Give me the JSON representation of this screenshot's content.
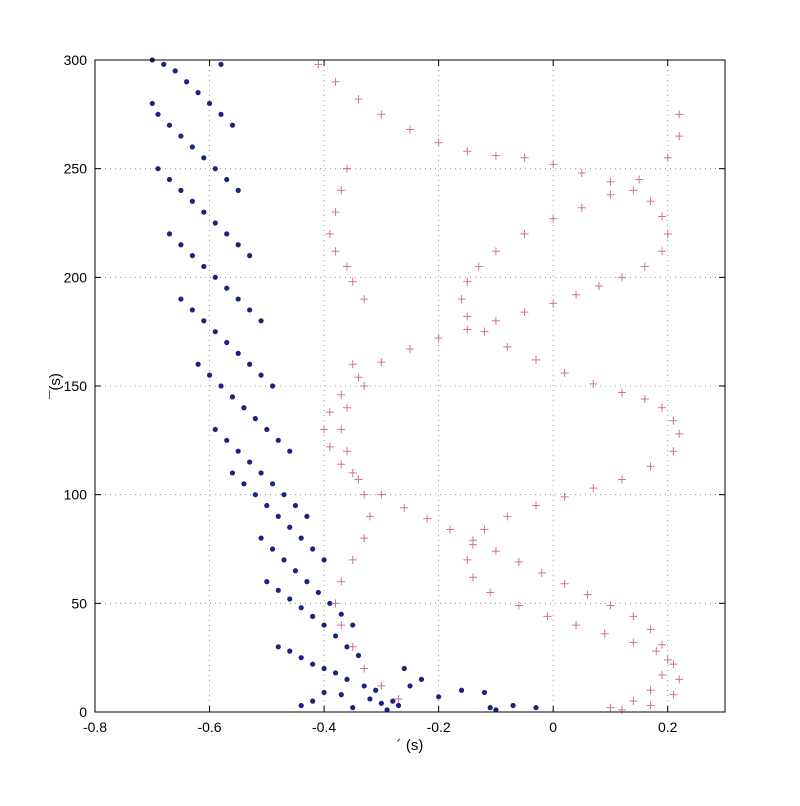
{
  "chart_data": {
    "type": "scatter",
    "title": "",
    "xlabel": "´ (s)",
    "ylabel": "¯(s)",
    "xlim": [
      -0.8,
      0.3
    ],
    "ylim": [
      0,
      300
    ],
    "xticks": [
      "-0.8",
      "-0.6",
      "-0.4",
      "-0.2",
      "0",
      "0.2"
    ],
    "yticks": [
      "0",
      "50",
      "100",
      "150",
      "200",
      "250",
      "300"
    ],
    "grid": true,
    "colors": {
      "dots": "#1a237e",
      "plus": "#d4709a"
    },
    "series": [
      {
        "marker": "dot",
        "color": "#1a237e",
        "points": [
          [
            -0.03,
            2
          ],
          [
            -0.07,
            3
          ],
          [
            -0.1,
            1
          ],
          [
            -0.11,
            2
          ],
          [
            -0.16,
            10
          ],
          [
            -0.12,
            9
          ],
          [
            -0.2,
            7
          ],
          [
            -0.23,
            15
          ],
          [
            -0.25,
            12
          ],
          [
            -0.27,
            3
          ],
          [
            -0.29,
            1
          ],
          [
            -0.26,
            20
          ],
          [
            -0.28,
            5
          ],
          [
            -0.3,
            4
          ],
          [
            -0.32,
            6
          ],
          [
            -0.35,
            2
          ],
          [
            -0.37,
            8
          ],
          [
            -0.4,
            9
          ],
          [
            -0.42,
            5
          ],
          [
            -0.44,
            3
          ],
          [
            -0.31,
            10
          ],
          [
            -0.33,
            12
          ],
          [
            -0.36,
            15
          ],
          [
            -0.38,
            18
          ],
          [
            -0.4,
            20
          ],
          [
            -0.42,
            22
          ],
          [
            -0.44,
            25
          ],
          [
            -0.46,
            28
          ],
          [
            -0.48,
            30
          ],
          [
            -0.34,
            26
          ],
          [
            -0.36,
            30
          ],
          [
            -0.38,
            35
          ],
          [
            -0.4,
            40
          ],
          [
            -0.42,
            44
          ],
          [
            -0.44,
            48
          ],
          [
            -0.46,
            52
          ],
          [
            -0.48,
            56
          ],
          [
            -0.5,
            60
          ],
          [
            -0.35,
            40
          ],
          [
            -0.37,
            45
          ],
          [
            -0.39,
            50
          ],
          [
            -0.41,
            55
          ],
          [
            -0.43,
            60
          ],
          [
            -0.45,
            65
          ],
          [
            -0.47,
            70
          ],
          [
            -0.49,
            75
          ],
          [
            -0.51,
            80
          ],
          [
            -0.4,
            70
          ],
          [
            -0.42,
            75
          ],
          [
            -0.44,
            80
          ],
          [
            -0.46,
            85
          ],
          [
            -0.48,
            90
          ],
          [
            -0.5,
            95
          ],
          [
            -0.52,
            100
          ],
          [
            -0.54,
            105
          ],
          [
            -0.56,
            110
          ],
          [
            -0.43,
            90
          ],
          [
            -0.45,
            95
          ],
          [
            -0.47,
            100
          ],
          [
            -0.49,
            105
          ],
          [
            -0.51,
            110
          ],
          [
            -0.53,
            115
          ],
          [
            -0.55,
            120
          ],
          [
            -0.57,
            125
          ],
          [
            -0.59,
            130
          ],
          [
            -0.46,
            120
          ],
          [
            -0.48,
            125
          ],
          [
            -0.5,
            130
          ],
          [
            -0.52,
            135
          ],
          [
            -0.54,
            140
          ],
          [
            -0.56,
            145
          ],
          [
            -0.58,
            150
          ],
          [
            -0.6,
            155
          ],
          [
            -0.62,
            160
          ],
          [
            -0.49,
            150
          ],
          [
            -0.51,
            155
          ],
          [
            -0.53,
            160
          ],
          [
            -0.55,
            165
          ],
          [
            -0.57,
            170
          ],
          [
            -0.59,
            175
          ],
          [
            -0.61,
            180
          ],
          [
            -0.63,
            185
          ],
          [
            -0.65,
            190
          ],
          [
            -0.51,
            180
          ],
          [
            -0.53,
            185
          ],
          [
            -0.55,
            190
          ],
          [
            -0.57,
            195
          ],
          [
            -0.59,
            200
          ],
          [
            -0.61,
            205
          ],
          [
            -0.63,
            210
          ],
          [
            -0.65,
            215
          ],
          [
            -0.67,
            220
          ],
          [
            -0.53,
            210
          ],
          [
            -0.55,
            215
          ],
          [
            -0.57,
            220
          ],
          [
            -0.59,
            225
          ],
          [
            -0.61,
            230
          ],
          [
            -0.63,
            235
          ],
          [
            -0.65,
            240
          ],
          [
            -0.67,
            245
          ],
          [
            -0.69,
            250
          ],
          [
            -0.55,
            240
          ],
          [
            -0.57,
            245
          ],
          [
            -0.59,
            250
          ],
          [
            -0.61,
            255
          ],
          [
            -0.63,
            260
          ],
          [
            -0.65,
            265
          ],
          [
            -0.67,
            270
          ],
          [
            -0.69,
            275
          ],
          [
            -0.7,
            280
          ],
          [
            -0.56,
            270
          ],
          [
            -0.58,
            275
          ],
          [
            -0.6,
            280
          ],
          [
            -0.62,
            285
          ],
          [
            -0.64,
            290
          ],
          [
            -0.66,
            295
          ],
          [
            -0.68,
            298
          ],
          [
            -0.7,
            300
          ],
          [
            -0.58,
            298
          ]
        ]
      },
      {
        "marker": "plus",
        "color": "#d4709a",
        "points": [
          [
            0.22,
            275
          ],
          [
            0.22,
            265
          ],
          [
            0.2,
            255
          ],
          [
            0.15,
            245
          ],
          [
            0.1,
            238
          ],
          [
            0.05,
            232
          ],
          [
            0,
            227
          ],
          [
            -0.05,
            220
          ],
          [
            -0.1,
            212
          ],
          [
            -0.13,
            205
          ],
          [
            -0.15,
            198
          ],
          [
            -0.16,
            190
          ],
          [
            -0.15,
            182
          ],
          [
            -0.12,
            175
          ],
          [
            -0.08,
            168
          ],
          [
            -0.03,
            162
          ],
          [
            0.02,
            156
          ],
          [
            0.07,
            151
          ],
          [
            0.12,
            147
          ],
          [
            0.16,
            144
          ],
          [
            0.19,
            140
          ],
          [
            0.21,
            134
          ],
          [
            0.22,
            128
          ],
          [
            0.21,
            120
          ],
          [
            0.17,
            113
          ],
          [
            0.12,
            107
          ],
          [
            0.07,
            103
          ],
          [
            0.02,
            99
          ],
          [
            -0.03,
            95
          ],
          [
            -0.08,
            90
          ],
          [
            -0.12,
            84
          ],
          [
            -0.14,
            77
          ],
          [
            -0.15,
            70
          ],
          [
            -0.14,
            62
          ],
          [
            -0.11,
            55
          ],
          [
            -0.06,
            49
          ],
          [
            -0.01,
            44
          ],
          [
            0.04,
            40
          ],
          [
            0.09,
            36
          ],
          [
            0.14,
            32
          ],
          [
            0.18,
            28
          ],
          [
            0.21,
            22
          ],
          [
            0.22,
            15
          ],
          [
            0.21,
            8
          ],
          [
            0.17,
            3
          ],
          [
            0.12,
            1
          ],
          [
            -0.41,
            298
          ],
          [
            -0.38,
            290
          ],
          [
            -0.34,
            282
          ],
          [
            -0.3,
            275
          ],
          [
            -0.25,
            268
          ],
          [
            -0.2,
            262
          ],
          [
            -0.15,
            258
          ],
          [
            -0.1,
            256
          ],
          [
            -0.05,
            255
          ],
          [
            0,
            252
          ],
          [
            0.05,
            248
          ],
          [
            0.1,
            244
          ],
          [
            0.14,
            240
          ],
          [
            0.17,
            235
          ],
          [
            0.19,
            228
          ],
          [
            0.2,
            220
          ],
          [
            0.19,
            212
          ],
          [
            0.16,
            205
          ],
          [
            0.12,
            200
          ],
          [
            0.08,
            196
          ],
          [
            0.04,
            192
          ],
          [
            0,
            188
          ],
          [
            -0.05,
            184
          ],
          [
            -0.1,
            180
          ],
          [
            -0.15,
            176
          ],
          [
            -0.2,
            172
          ],
          [
            -0.25,
            167
          ],
          [
            -0.3,
            161
          ],
          [
            -0.34,
            154
          ],
          [
            -0.37,
            146
          ],
          [
            -0.39,
            138
          ],
          [
            -0.4,
            130
          ],
          [
            -0.39,
            122
          ],
          [
            -0.37,
            114
          ],
          [
            -0.34,
            107
          ],
          [
            -0.3,
            100
          ],
          [
            -0.26,
            94
          ],
          [
            -0.22,
            89
          ],
          [
            -0.18,
            84
          ],
          [
            -0.14,
            79
          ],
          [
            -0.1,
            74
          ],
          [
            -0.06,
            69
          ],
          [
            -0.02,
            64
          ],
          [
            0.02,
            59
          ],
          [
            0.06,
            54
          ],
          [
            0.1,
            49
          ],
          [
            0.14,
            44
          ],
          [
            0.17,
            38
          ],
          [
            0.19,
            31
          ],
          [
            0.2,
            24
          ],
          [
            0.19,
            17
          ],
          [
            0.17,
            10
          ],
          [
            0.14,
            5
          ],
          [
            0.1,
            2
          ],
          [
            -0.36,
            250
          ],
          [
            -0.37,
            240
          ],
          [
            -0.38,
            230
          ],
          [
            -0.39,
            220
          ],
          [
            -0.38,
            212
          ],
          [
            -0.36,
            205
          ],
          [
            -0.35,
            198
          ],
          [
            -0.33,
            190
          ],
          [
            -0.36,
            250
          ],
          [
            -0.33,
            150
          ],
          [
            -0.35,
            160
          ],
          [
            -0.36,
            140
          ],
          [
            -0.37,
            130
          ],
          [
            -0.36,
            120
          ],
          [
            -0.35,
            110
          ],
          [
            -0.33,
            100
          ],
          [
            -0.32,
            90
          ],
          [
            -0.33,
            80
          ],
          [
            -0.35,
            70
          ],
          [
            -0.37,
            60
          ],
          [
            -0.38,
            50
          ],
          [
            -0.37,
            40
          ],
          [
            -0.35,
            30
          ],
          [
            -0.33,
            20
          ],
          [
            -0.3,
            12
          ],
          [
            -0.27,
            6
          ]
        ]
      }
    ]
  }
}
